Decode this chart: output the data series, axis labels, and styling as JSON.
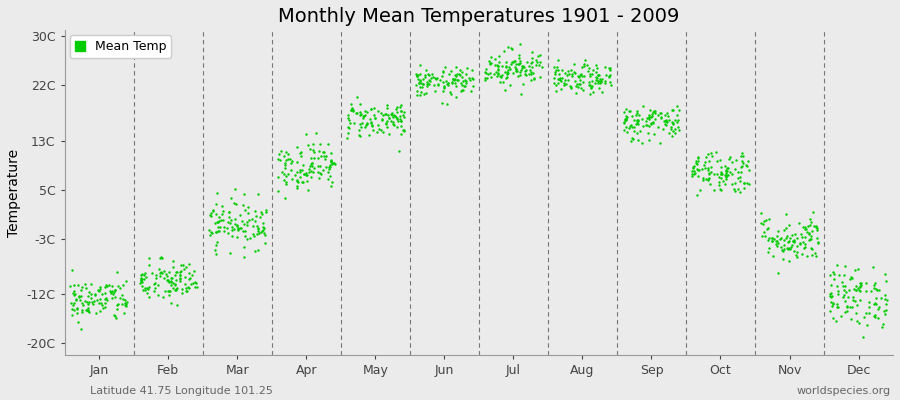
{
  "title": "Monthly Mean Temperatures 1901 - 2009",
  "ylabel": "Temperature",
  "subtitle_left": "Latitude 41.75 Longitude 101.25",
  "subtitle_right": "worldspecies.org",
  "yticks": [
    -20,
    -12,
    -3,
    5,
    13,
    22,
    30
  ],
  "ytick_labels": [
    "-20C",
    "-12C",
    "-3C",
    "5C",
    "13C",
    "22C",
    "30C"
  ],
  "ylim": [
    -22,
    31
  ],
  "xlim": [
    0,
    12
  ],
  "months": [
    "Jan",
    "Feb",
    "Mar",
    "Apr",
    "May",
    "Jun",
    "Jul",
    "Aug",
    "Sep",
    "Oct",
    "Nov",
    "Dec"
  ],
  "month_tick_positions": [
    0.5,
    1.5,
    2.5,
    3.5,
    4.5,
    5.5,
    6.5,
    7.5,
    8.5,
    9.5,
    10.5,
    11.5
  ],
  "dashed_line_positions": [
    1,
    2,
    3,
    4,
    5,
    6,
    7,
    8,
    9,
    10,
    11
  ],
  "dot_color": "#00CC00",
  "background_color": "#ebebeb",
  "mean_temps_by_month": {
    "Jan": {
      "mean": -13.0,
      "std": 1.8
    },
    "Feb": {
      "mean": -10.0,
      "std": 1.8
    },
    "Mar": {
      "mean": -0.5,
      "std": 2.0
    },
    "Apr": {
      "mean": 9.0,
      "std": 2.0
    },
    "May": {
      "mean": 16.5,
      "std": 1.5
    },
    "Jun": {
      "mean": 22.5,
      "std": 1.2
    },
    "Jul": {
      "mean": 25.0,
      "std": 1.5
    },
    "Aug": {
      "mean": 23.0,
      "std": 1.2
    },
    "Sep": {
      "mean": 16.0,
      "std": 1.5
    },
    "Oct": {
      "mean": 8.0,
      "std": 1.8
    },
    "Nov": {
      "mean": -3.0,
      "std": 2.0
    },
    "Dec": {
      "mean": -12.5,
      "std": 2.5
    }
  },
  "n_points": 109,
  "marker_size": 3,
  "title_fontsize": 14,
  "axis_fontsize": 10,
  "tick_fontsize": 9,
  "legend_fontsize": 9,
  "subtitle_fontsize": 8
}
